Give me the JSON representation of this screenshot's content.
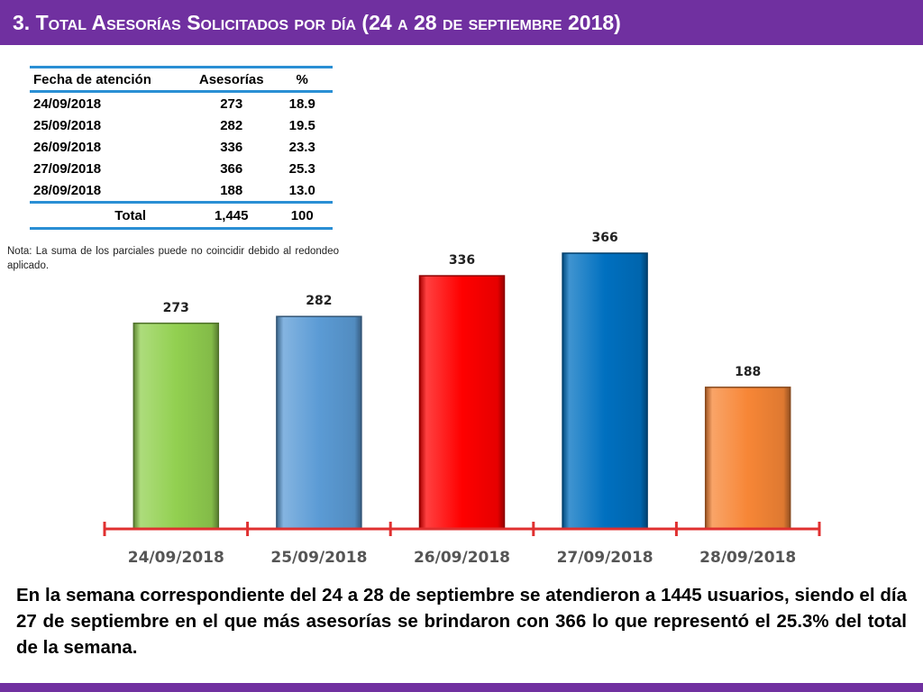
{
  "header": {
    "title": "3.  Total Asesorías Solicitados por día  (24 a 28 de septiembre 2018)"
  },
  "table": {
    "columns": [
      "Fecha de atención",
      "Asesorías",
      "%"
    ],
    "rows": [
      [
        "24/09/2018",
        "273",
        "18.9"
      ],
      [
        "25/09/2018",
        "282",
        "19.5"
      ],
      [
        "26/09/2018",
        "336",
        "23.3"
      ],
      [
        "27/09/2018",
        "366",
        "25.3"
      ],
      [
        "28/09/2018",
        "188",
        "13.0"
      ]
    ],
    "total": [
      "Total",
      "1,445",
      "100"
    ]
  },
  "note": "Nota: La suma de los parciales puede no coincidir debido al redondeo aplicado.",
  "chart_data": {
    "type": "bar",
    "categories": [
      "24/09/2018",
      "25/09/2018",
      "26/09/2018",
      "27/09/2018",
      "28/09/2018"
    ],
    "values": [
      273,
      282,
      336,
      366,
      188
    ],
    "colors": [
      "#92d050",
      "#5b9bd5",
      "#ff0000",
      "#0070c0",
      "#f78636"
    ],
    "axis_color": "#e03030",
    "ylim": [
      0,
      400
    ],
    "grid": false,
    "legend": false
  },
  "paragraph": "En la semana correspondiente del 24 a 28 de septiembre se atendieron a 1445 usuarios, siendo el día 27 de septiembre en el que más asesorías se brindaron con 366 lo que representó el 25.3% del total de la semana."
}
